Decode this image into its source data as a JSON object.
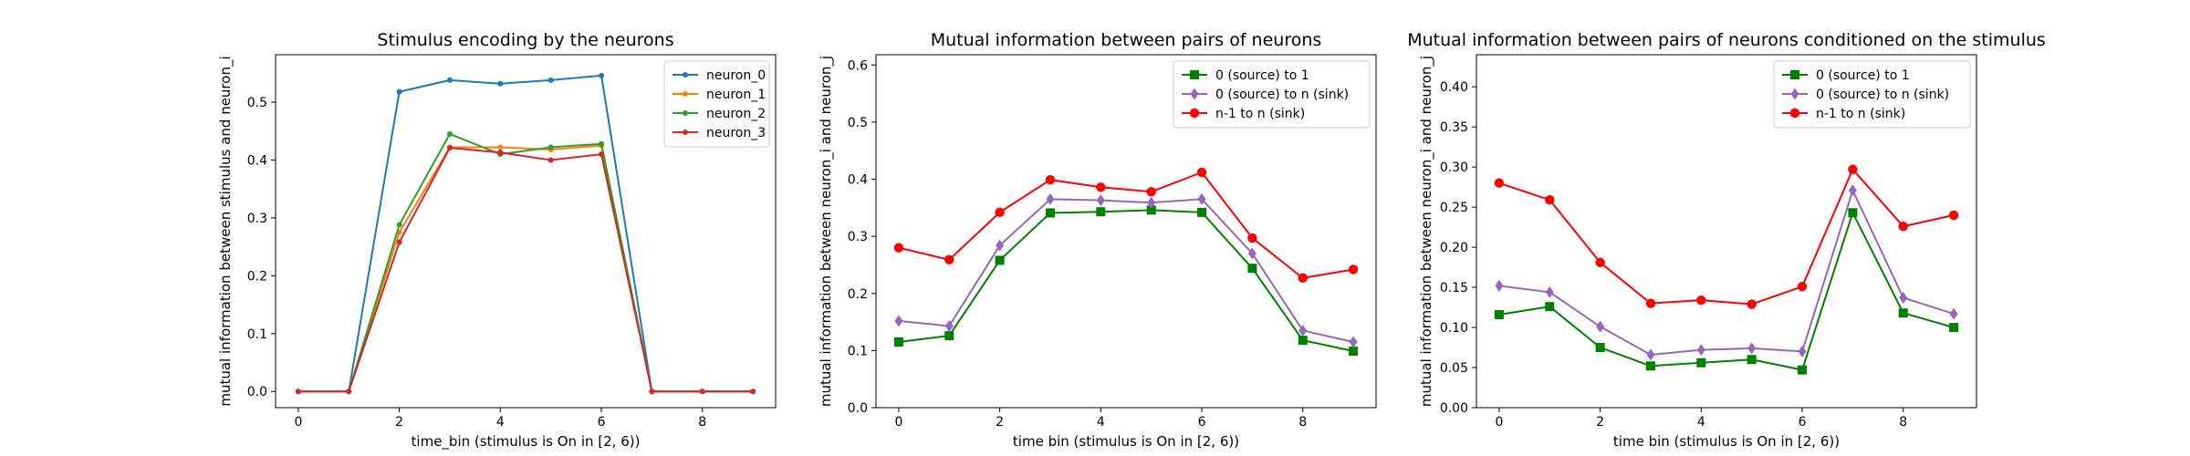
{
  "colors": {
    "neuron_0": "#1f77b4",
    "neuron_1": "#ff7f0e",
    "neuron_2": "#2ca02c",
    "neuron_3": "#d62728",
    "green": "#008000",
    "purple": "#9467bd",
    "red": "#ff0000"
  },
  "chart_data": [
    {
      "type": "line",
      "title": "Stimulus encoding by the neurons",
      "xlabel": "time_bin (stimulus is On in [2, 6))",
      "ylabel": "mutual information between stimulus and neuron_i",
      "xlim": [
        -0.45,
        9.45
      ],
      "ylim": [
        -0.028,
        0.582
      ],
      "xticks": [
        0,
        2,
        4,
        6,
        8
      ],
      "yticks": [
        0.0,
        0.1,
        0.2,
        0.3,
        0.4,
        0.5
      ],
      "ytick_labels": [
        "0.0",
        "0.1",
        "0.2",
        "0.3",
        "0.4",
        "0.5"
      ],
      "legend_position": "top-right",
      "x": [
        0,
        1,
        2,
        3,
        4,
        5,
        6,
        7,
        8,
        9
      ],
      "series": [
        {
          "name": "neuron_0",
          "color": "#1f77b4",
          "marker": "dot",
          "values": [
            0.0,
            0.0,
            0.518,
            0.538,
            0.532,
            0.538,
            0.546,
            0.0,
            0.0,
            0.0
          ]
        },
        {
          "name": "neuron_1",
          "color": "#ff7f0e",
          "marker": "dot",
          "values": [
            0.0,
            0.0,
            0.275,
            0.422,
            0.422,
            0.418,
            0.425,
            0.0,
            0.0,
            0.0
          ]
        },
        {
          "name": "neuron_2",
          "color": "#2ca02c",
          "marker": "dot",
          "values": [
            0.0,
            0.0,
            0.288,
            0.445,
            0.41,
            0.422,
            0.428,
            0.0,
            0.0,
            0.0
          ]
        },
        {
          "name": "neuron_3",
          "color": "#d62728",
          "marker": "dot",
          "values": [
            0.0,
            0.0,
            0.258,
            0.421,
            0.413,
            0.4,
            0.41,
            0.0,
            0.0,
            0.0
          ]
        }
      ]
    },
    {
      "type": "line",
      "title": "Mutual information between pairs of neurons",
      "xlabel": "time bin (stimulus is On in [2, 6))",
      "ylabel": "mutual information between neuron_i and neuron_j",
      "xlim": [
        -0.45,
        9.45
      ],
      "ylim": [
        0.0,
        0.618
      ],
      "xticks": [
        0,
        2,
        4,
        6,
        8
      ],
      "yticks": [
        0.0,
        0.1,
        0.2,
        0.3,
        0.4,
        0.5,
        0.6
      ],
      "ytick_labels": [
        "0.0",
        "0.1",
        "0.2",
        "0.3",
        "0.4",
        "0.5",
        "0.6"
      ],
      "legend_position": "top-right",
      "x": [
        0,
        1,
        2,
        3,
        4,
        5,
        6,
        7,
        8,
        9
      ],
      "series": [
        {
          "name": "0 (source) to 1",
          "color": "#008000",
          "marker": "square",
          "values": [
            0.115,
            0.126,
            0.258,
            0.341,
            0.343,
            0.346,
            0.342,
            0.244,
            0.118,
            0.099
          ]
        },
        {
          "name": "0 (source) to n (sink)",
          "color": "#9467bd",
          "marker": "diamond",
          "values": [
            0.152,
            0.143,
            0.284,
            0.365,
            0.363,
            0.359,
            0.365,
            0.27,
            0.135,
            0.115
          ]
        },
        {
          "name": "n-1 to n (sink)",
          "color": "#ff0000",
          "marker": "circle",
          "values": [
            0.28,
            0.259,
            0.342,
            0.399,
            0.386,
            0.378,
            0.412,
            0.297,
            0.227,
            0.242
          ]
        }
      ]
    },
    {
      "type": "line",
      "title": "Mutual information between pairs of neurons conditioned on the stimulus",
      "xlabel": "time bin (stimulus is On in [2, 6))",
      "ylabel": "mutual information between neuron_i and neuron_j",
      "xlim": [
        -0.45,
        9.45
      ],
      "ylim": [
        0.0,
        0.44
      ],
      "xticks": [
        0,
        2,
        4,
        6,
        8
      ],
      "yticks": [
        0.0,
        0.05,
        0.1,
        0.15,
        0.2,
        0.25,
        0.3,
        0.35,
        0.4
      ],
      "ytick_labels": [
        "0.00",
        "0.05",
        "0.10",
        "0.15",
        "0.20",
        "0.25",
        "0.30",
        "0.35",
        "0.40"
      ],
      "legend_position": "top-right",
      "x": [
        0,
        1,
        2,
        3,
        4,
        5,
        6,
        7,
        8,
        9
      ],
      "series": [
        {
          "name": "0 (source) to 1",
          "color": "#008000",
          "marker": "square",
          "values": [
            0.116,
            0.126,
            0.075,
            0.052,
            0.056,
            0.06,
            0.047,
            0.243,
            0.118,
            0.1
          ]
        },
        {
          "name": "0 (source) to n (sink)",
          "color": "#9467bd",
          "marker": "diamond",
          "values": [
            0.152,
            0.144,
            0.101,
            0.066,
            0.072,
            0.074,
            0.07,
            0.271,
            0.137,
            0.117
          ]
        },
        {
          "name": "n-1 to n (sink)",
          "color": "#ff0000",
          "marker": "circle",
          "values": [
            0.28,
            0.259,
            0.181,
            0.13,
            0.134,
            0.129,
            0.151,
            0.297,
            0.226,
            0.24
          ]
        }
      ]
    }
  ]
}
